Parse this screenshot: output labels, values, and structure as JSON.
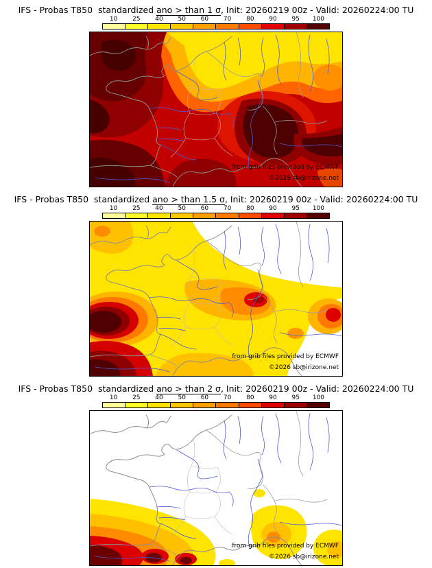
{
  "page": {
    "background": "#ffffff"
  },
  "colorbar": {
    "ticks": [
      "10",
      "25",
      "40",
      "50",
      "60",
      "70",
      "80",
      "90",
      "95",
      "100"
    ],
    "colors": [
      "#ffff9e",
      "#ffff28",
      "#ffe600",
      "#ffc800",
      "#ffa000",
      "#ff7800",
      "#ff4b00",
      "#e10000",
      "#a00000",
      "#550000"
    ]
  },
  "panels": [
    {
      "title_prefix": "IFS - Probas T850  standardized ",
      "title_sigma": "ano > than 1 σ",
      "title_suffix": ", Init: 20260219 00z - Valid: 20260224:00 TU",
      "credit_line1": "from grib files provided by ECMWF",
      "credit_line2": "©2026 sb@irizone.net"
    },
    {
      "title_prefix": "IFS - Probas T850  standardized ",
      "title_sigma": "ano > than 1.5 σ",
      "title_suffix": ", Init: 20260219 00z - Valid: 20260224:00 TU",
      "credit_line1": "from grib files provided by ECMWF",
      "credit_line2": "©2026 sb@irizone.net"
    },
    {
      "title_prefix": "IFS - Probas T850  standardized ",
      "title_sigma": "ano > than 2 σ",
      "title_suffix": ", Init: 20260219 00z - Valid: 20260224:00 TU",
      "credit_line1": "from grib files provided by ECMWF",
      "credit_line2": "©2026 sb@irizone.net"
    }
  ]
}
